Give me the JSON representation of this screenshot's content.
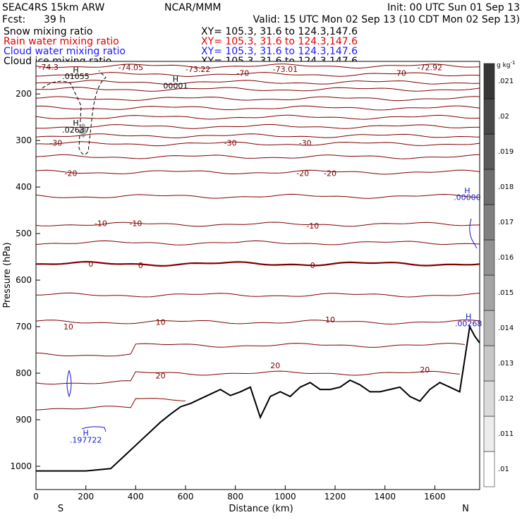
{
  "header": {
    "model": "SEAC4RS 15km ARW",
    "org": "NCAR/MMM",
    "init": "Init: 00 UTC Sun 01 Sep 13",
    "fcst_label": "Fcst:",
    "fcst_value": "39 h",
    "valid": "Valid: 15 UTC Mon 02 Sep 13 (10 CDT Mon 02 Sep 13)",
    "rows": [
      {
        "name": "Snow mixing ratio",
        "xy": "XY= 105.3, 31.6 to 124.3,147.6",
        "color": "#000000"
      },
      {
        "name": "Rain water mixing ratio",
        "xy": "XY= 105.3, 31.6 to 124.3,147.6",
        "color": "#e00000"
      },
      {
        "name": "Cloud water mixing ratio",
        "xy": "XY= 105.3, 31.6 to 124.3,147.6",
        "color": "#1a1aff"
      },
      {
        "name": "Cloud ice mixing ratio",
        "xy": "XY= 105.3, 31.6 to 124.3,147.6",
        "color": "#000000"
      }
    ]
  },
  "colors": {
    "temperature": "#800000",
    "cloud_water": "#1a1acc",
    "terrain": "#000000"
  },
  "chart_data": {
    "type": "line",
    "xlabel": "Distance (km)",
    "ylabel": "Pressure (hPa)",
    "xlim": [
      0,
      1780
    ],
    "ylim": [
      1050,
      130
    ],
    "x_ticks": [
      0,
      200,
      400,
      600,
      800,
      1000,
      1200,
      1400,
      1600
    ],
    "y_ticks": [
      1000,
      900,
      800,
      700,
      600,
      500,
      400,
      300,
      200
    ],
    "x_end_labels": {
      "left": "S",
      "right": "N"
    },
    "temperature_isotherms_C": [
      -74,
      -70,
      -65,
      -60,
      -55,
      -50,
      -45,
      -40,
      -35,
      -30,
      -25,
      -20,
      -15,
      -10,
      -5,
      0,
      5,
      10,
      15,
      20,
      25
    ],
    "contour_labels": [
      {
        "text": "-74.3",
        "x": 50,
        "p": 142
      },
      {
        "text": "-74.05",
        "x": 380,
        "p": 143
      },
      {
        "text": "-73.22",
        "x": 650,
        "p": 147
      },
      {
        "text": "-73.01",
        "x": 1000,
        "p": 147
      },
      {
        "text": "-72.92",
        "x": 1580,
        "p": 143
      },
      {
        "text": "-70",
        "x": 830,
        "p": 155
      },
      {
        "text": "-70",
        "x": 1460,
        "p": 155
      },
      {
        "text": "-30",
        "x": 80,
        "p": 305
      },
      {
        "text": "-30",
        "x": 780,
        "p": 305
      },
      {
        "text": "-30",
        "x": 1080,
        "p": 305
      },
      {
        "text": "-20",
        "x": 140,
        "p": 370
      },
      {
        "text": "-20",
        "x": 1070,
        "p": 370
      },
      {
        "text": "-20",
        "x": 1180,
        "p": 370
      },
      {
        "text": "-10",
        "x": 260,
        "p": 478
      },
      {
        "text": "-10",
        "x": 400,
        "p": 478
      },
      {
        "text": "-10",
        "x": 1110,
        "p": 483
      },
      {
        "text": "0",
        "x": 220,
        "p": 565
      },
      {
        "text": "0",
        "x": 420,
        "p": 568
      },
      {
        "text": "0",
        "x": 1110,
        "p": 568
      },
      {
        "text": "10",
        "x": 130,
        "p": 700
      },
      {
        "text": "10",
        "x": 500,
        "p": 690
      },
      {
        "text": "10",
        "x": 1180,
        "p": 685
      },
      {
        "text": "20",
        "x": 500,
        "p": 805
      },
      {
        "text": "20",
        "x": 960,
        "p": 783
      },
      {
        "text": "20",
        "x": 1560,
        "p": 792
      }
    ],
    "maxima_labels": [
      {
        "text": "H",
        "x": 160,
        "p": 148,
        "color": "#000000"
      },
      {
        "text": ".01055",
        "x": 160,
        "p": 162,
        "color": "#000000"
      },
      {
        "text": "H",
        "x": 560,
        "p": 168,
        "color": "#000000"
      },
      {
        "text": "00001",
        "x": 560,
        "p": 182,
        "color": "#000000"
      },
      {
        "text": "H",
        "x": 160,
        "p": 262,
        "color": "#000000"
      },
      {
        "text": ".02637",
        "x": 160,
        "p": 277,
        "color": "#000000"
      },
      {
        "text": "H",
        "x": 1730,
        "p": 407,
        "color": "#1a1acc"
      },
      {
        "text": ".00000",
        "x": 1730,
        "p": 422,
        "color": "#1a1acc"
      },
      {
        "text": "H",
        "x": 1735,
        "p": 678,
        "color": "#1a1acc"
      },
      {
        "text": ".00268",
        "x": 1735,
        "p": 693,
        "color": "#1a1acc"
      },
      {
        "text": "H",
        "x": 200,
        "p": 928,
        "color": "#1a1acc"
      },
      {
        "text": ".197722",
        "x": 200,
        "p": 943,
        "color": "#1a1acc"
      }
    ],
    "terrain_surface_hPa": {
      "x": [
        0,
        100,
        200,
        300,
        340,
        380,
        420,
        460,
        500,
        540,
        580,
        620,
        660,
        700,
        740,
        780,
        820,
        860,
        900,
        940,
        980,
        1020,
        1060,
        1100,
        1140,
        1180,
        1220,
        1260,
        1300,
        1340,
        1380,
        1420,
        1460,
        1500,
        1540,
        1580,
        1620,
        1660,
        1700,
        1740,
        1760,
        1780
      ],
      "p": [
        1010,
        1010,
        1010,
        1005,
        985,
        965,
        945,
        925,
        905,
        888,
        872,
        865,
        855,
        845,
        835,
        848,
        840,
        830,
        895,
        850,
        840,
        850,
        830,
        820,
        835,
        835,
        830,
        815,
        825,
        840,
        840,
        835,
        830,
        850,
        860,
        835,
        820,
        830,
        840,
        700,
        720,
        735
      ]
    },
    "colorbar": {
      "unit": "g kg",
      "unit_exponent": "-1",
      "levels": [
        ".01",
        ".011",
        ".012",
        ".013",
        ".014",
        ".015",
        ".016",
        ".017",
        ".018",
        ".019",
        ".02",
        ".021"
      ]
    }
  }
}
